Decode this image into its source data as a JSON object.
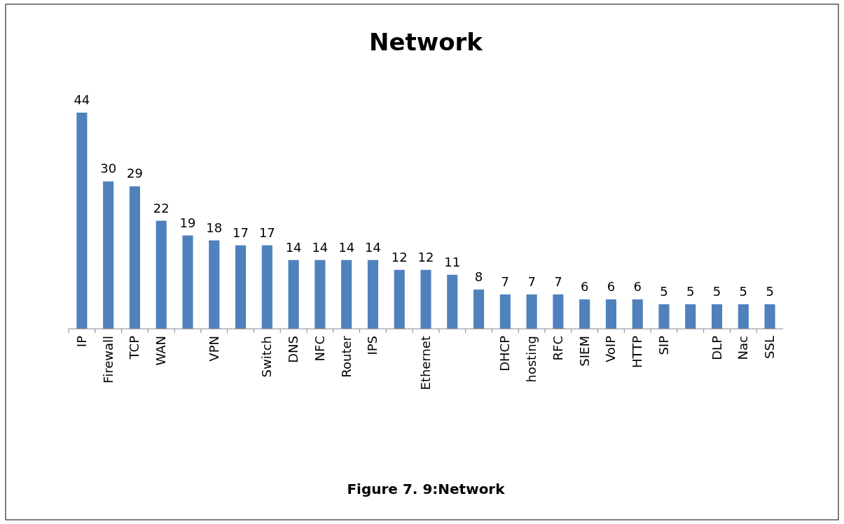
{
  "chart_data": {
    "type": "bar",
    "title": "Network",
    "categories": [
      "IP",
      "Firewall",
      "TCP",
      "WAN",
      null,
      "VPN",
      null,
      "Switch",
      "DNS",
      "NFC",
      "Router",
      "IPS",
      null,
      "Ethernet",
      null,
      null,
      "DHCP",
      "hosting",
      "RFC",
      "SIEM",
      "VoIP",
      "HTTP",
      "SIP",
      null,
      "DLP",
      "Nac",
      "SSL"
    ],
    "values": [
      44,
      30,
      29,
      22,
      19,
      18,
      17,
      17,
      14,
      14,
      14,
      14,
      12,
      12,
      11,
      8,
      7,
      7,
      7,
      6,
      6,
      6,
      5,
      5,
      5,
      5,
      5
    ],
    "color": "#4f81bd",
    "data_labels": true,
    "annotations": [
      "Figure 7. 9:Network"
    ]
  }
}
